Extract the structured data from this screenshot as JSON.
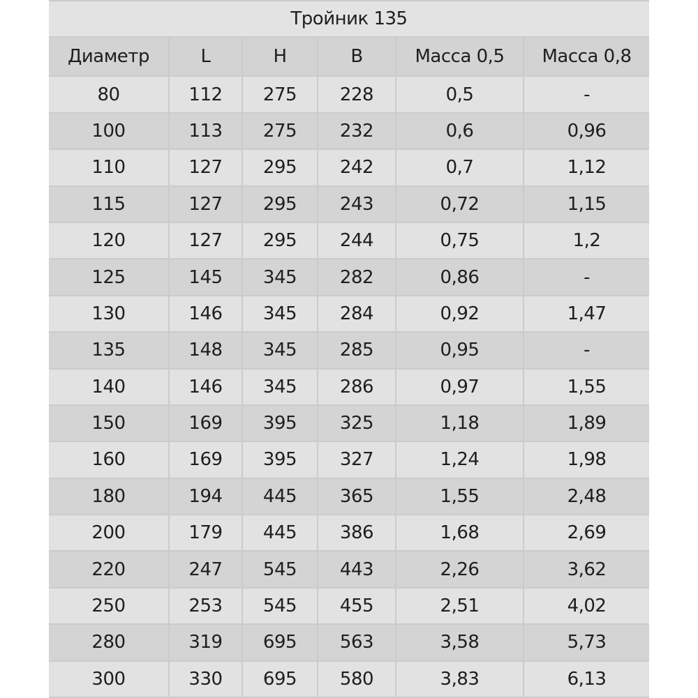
{
  "title": "Тройник 135",
  "columns": [
    "Диаметр",
    "L",
    "H",
    "B",
    "Масса 0,5",
    "Масса 0,8"
  ],
  "rows": [
    [
      "80",
      "112",
      "275",
      "228",
      "0,5",
      "-"
    ],
    [
      "100",
      "113",
      "275",
      "232",
      "0,6",
      "0,96"
    ],
    [
      "110",
      "127",
      "295",
      "242",
      "0,7",
      "1,12"
    ],
    [
      "115",
      "127",
      "295",
      "243",
      "0,72",
      "1,15"
    ],
    [
      "120",
      "127",
      "295",
      "244",
      "0,75",
      "1,2"
    ],
    [
      "125",
      "145",
      "345",
      "282",
      "0,86",
      "-"
    ],
    [
      "130",
      "146",
      "345",
      "284",
      "0,92",
      "1,47"
    ],
    [
      "135",
      "148",
      "345",
      "285",
      "0,95",
      "-"
    ],
    [
      "140",
      "146",
      "345",
      "286",
      "0,97",
      "1,55"
    ],
    [
      "150",
      "169",
      "395",
      "325",
      "1,18",
      "1,89"
    ],
    [
      "160",
      "169",
      "395",
      "327",
      "1,24",
      "1,98"
    ],
    [
      "180",
      "194",
      "445",
      "365",
      "1,55",
      "2,48"
    ],
    [
      "200",
      "179",
      "445",
      "386",
      "1,68",
      "2,69"
    ],
    [
      "220",
      "247",
      "545",
      "443",
      "2,26",
      "3,62"
    ],
    [
      "250",
      "253",
      "545",
      "455",
      "2,51",
      "4,02"
    ],
    [
      "280",
      "319",
      "695",
      "563",
      "3,58",
      "5,73"
    ],
    [
      "300",
      "330",
      "695",
      "580",
      "3,83",
      "6,13"
    ]
  ]
}
